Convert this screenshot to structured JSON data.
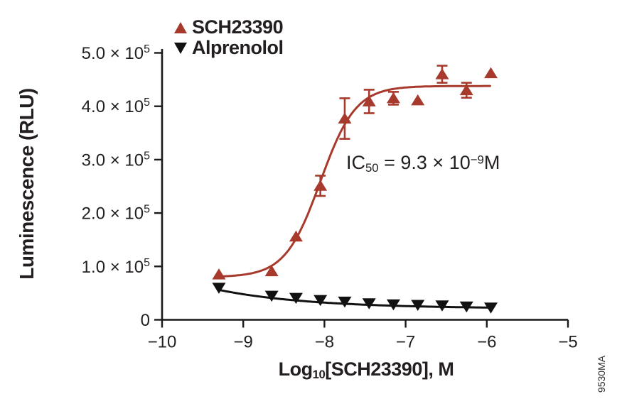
{
  "figure": {
    "background": "#ffffff",
    "side_code": "9530MA",
    "text_color": "#231f20"
  },
  "chart_data": {
    "type": "scatter",
    "title": "",
    "xlabel_text": "Log10[SCH23390], M",
    "ylabel": "Luminescence (RLU)",
    "xlabel": {
      "prefix": "Log",
      "sub": "10",
      "rest": "[SCH23390], M"
    },
    "xlim": [
      -10,
      -5
    ],
    "ylim": [
      0,
      500000
    ],
    "grid": false,
    "legend_position": "top-left-above-plot",
    "x_ticks": [
      {
        "v": -10,
        "label": "−10"
      },
      {
        "v": -9,
        "label": "−9"
      },
      {
        "v": -8,
        "label": "−8"
      },
      {
        "v": -7,
        "label": "−7"
      },
      {
        "v": -6,
        "label": "−6"
      },
      {
        "v": -5,
        "label": "−5"
      }
    ],
    "y_ticks": [
      {
        "v": 0,
        "label": "0"
      },
      {
        "v": 100000,
        "label": "1.0 × 10",
        "sup": "5"
      },
      {
        "v": 200000,
        "label": "2.0 × 10",
        "sup": "5"
      },
      {
        "v": 300000,
        "label": "3.0 × 10",
        "sup": "5"
      },
      {
        "v": 400000,
        "label": "4.0 × 10",
        "sup": "5"
      },
      {
        "v": 500000,
        "label": "5.0 × 10",
        "sup": "5"
      }
    ],
    "annotation": {
      "text": "IC50 = 9.3 × 10^−9 M",
      "prefix": "IC",
      "sub": "50",
      "mid": " = 9.3 × 10",
      "sup": "−9",
      "suffix": "M"
    },
    "series": [
      {
        "name": "SCH23390",
        "marker": "triangle-up",
        "color": "#a83a2d",
        "x": [
          -9.3,
          -8.65,
          -8.35,
          -8.05,
          -7.75,
          -7.45,
          -7.15,
          -6.85,
          -6.55,
          -6.25,
          -5.95
        ],
        "y": [
          85000,
          91000,
          156000,
          251000,
          377000,
          409000,
          415000,
          411000,
          460000,
          430000,
          462000
        ],
        "yerr": [
          0,
          0,
          0,
          19000,
          38000,
          22000,
          12000,
          0,
          16000,
          14000,
          0
        ],
        "fit": {
          "kind": "sigmoid",
          "bottom": 80000,
          "top": 438000,
          "logec50": -8.05,
          "hill": 2.0,
          "x_start": -9.3,
          "x_end": -5.95
        },
        "ic50_molar": "9.3e-9"
      },
      {
        "name": "Alprenolol",
        "marker": "triangle-down",
        "color": "#111111",
        "x": [
          -9.3,
          -8.65,
          -8.35,
          -8.05,
          -7.75,
          -7.45,
          -7.15,
          -6.85,
          -6.55,
          -6.25,
          -5.95
        ],
        "y": [
          60000,
          45000,
          41000,
          37000,
          34000,
          31000,
          29000,
          28000,
          27000,
          25000,
          23000
        ],
        "yerr": [
          0,
          0,
          0,
          0,
          0,
          0,
          0,
          0,
          0,
          0,
          0
        ],
        "fit": {
          "kind": "exp_decay",
          "c": 21000,
          "a": 35000,
          "k": -0.38,
          "x0": -9.3,
          "x_start": -9.3,
          "x_end": -5.95
        }
      }
    ]
  }
}
